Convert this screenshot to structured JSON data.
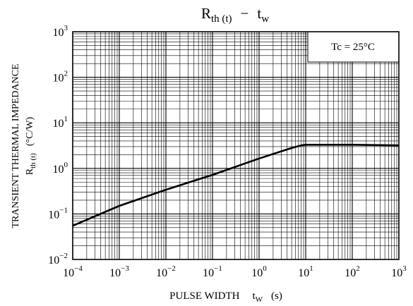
{
  "chart_data": {
    "type": "line",
    "title": {
      "main": "R",
      "main_sub": "th (t)",
      "dash": "−",
      "t": "t",
      "t_sub": "w"
    },
    "xlabel": {
      "text": "PULSE WIDTH",
      "sym": "t",
      "sym_sub": "W",
      "unit": "(s)"
    },
    "ylabel": {
      "line1": "TRANSIENT THERMAL IMPEDANCE",
      "sym": "R",
      "sym_sub": "th (t)",
      "unit": "(°C/W)"
    },
    "x_scale": "log",
    "y_scale": "log",
    "xlim": [
      0.0001,
      1000
    ],
    "ylim": [
      0.01,
      1000
    ],
    "x_ticks": [
      {
        "value": 0.0001,
        "base": "10",
        "exp": "−4"
      },
      {
        "value": 0.001,
        "base": "10",
        "exp": "−3"
      },
      {
        "value": 0.01,
        "base": "10",
        "exp": "−2"
      },
      {
        "value": 0.1,
        "base": "10",
        "exp": "−1"
      },
      {
        "value": 1,
        "base": "10",
        "exp": "0"
      },
      {
        "value": 10,
        "base": "10",
        "exp": "1"
      },
      {
        "value": 100,
        "base": "10",
        "exp": "2"
      },
      {
        "value": 1000,
        "base": "10",
        "exp": "3"
      }
    ],
    "y_ticks": [
      {
        "value": 0.01,
        "base": "10",
        "exp": "−2"
      },
      {
        "value": 0.1,
        "base": "10",
        "exp": "−1"
      },
      {
        "value": 1,
        "base": "10",
        "exp": "0"
      },
      {
        "value": 10,
        "base": "10",
        "exp": "1"
      },
      {
        "value": 100,
        "base": "10",
        "exp": "2"
      },
      {
        "value": 1000,
        "base": "10",
        "exp": "3"
      }
    ],
    "grid": true,
    "annotation": "Tc = 25°C",
    "series": [
      {
        "x": [
          0.0001,
          0.001,
          0.01,
          0.1,
          1,
          5,
          8,
          10,
          100,
          1000
        ],
        "y": [
          0.055,
          0.15,
          0.34,
          0.72,
          1.65,
          2.8,
          3.2,
          3.3,
          3.3,
          3.2
        ]
      }
    ]
  }
}
